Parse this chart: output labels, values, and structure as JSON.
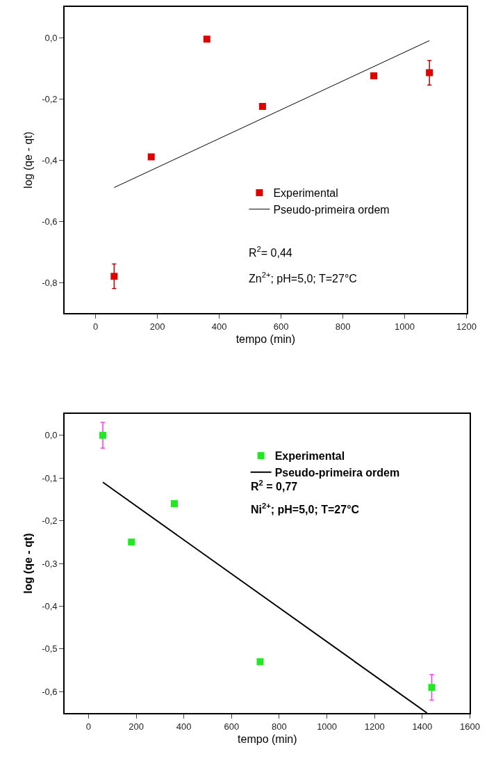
{
  "chart_data": [
    {
      "type": "scatter",
      "xlabel": "tempo (min)",
      "ylabel": "log (qe - qt)",
      "xlim": [
        -100,
        1200
      ],
      "ylim": [
        -0.9,
        0.1
      ],
      "xticks": [
        0,
        200,
        400,
        600,
        800,
        1000,
        1200
      ],
      "yticks": [
        {
          "value": 0,
          "label": "0,0"
        },
        {
          "value": -0.2,
          "label": "-0,2"
        },
        {
          "value": -0.4,
          "label": "-0,4"
        },
        {
          "value": -0.6,
          "label": "-0,6"
        },
        {
          "value": -0.8,
          "label": "-0,8"
        }
      ],
      "grid": false,
      "legend": "bottom right",
      "line_style": "solid",
      "series": [
        {
          "name": "Experimental",
          "marker": "square",
          "color": "#e00000",
          "x": [
            60,
            180,
            360,
            540,
            900,
            1080
          ],
          "values": [
            -0.78,
            -0.39,
            -0.005,
            -0.225,
            -0.125,
            -0.115
          ],
          "errors": [
            0.04,
            null,
            null,
            null,
            null,
            0.04
          ]
        },
        {
          "name": "Pseudo-primeira ordem",
          "type": "line",
          "color": "#000000",
          "x": [
            60,
            1080
          ],
          "values": [
            -0.49,
            -0.01
          ]
        }
      ],
      "annotations": [
        "R$^{2}$= 0,44",
        "Zn$^{2+}$; pH=5,0; T=27°C"
      ]
    },
    {
      "type": "scatter",
      "xlabel": "tempo (min)",
      "ylabel": "log (qe - qt)",
      "xlim": [
        -100,
        1600
      ],
      "ylim": [
        -0.65,
        0.05
      ],
      "xticks": [
        0,
        200,
        400,
        600,
        800,
        1000,
        1200,
        1400,
        1600
      ],
      "yticks": [
        {
          "value": 0,
          "label": "0,0"
        },
        {
          "value": -0.1,
          "label": "-0,1"
        },
        {
          "value": -0.2,
          "label": "-0,2"
        },
        {
          "value": -0.3,
          "label": "-0,3"
        },
        {
          "value": -0.4,
          "label": "-0,4"
        },
        {
          "value": -0.5,
          "label": "-0,5"
        },
        {
          "value": -0.6,
          "label": "-0,6"
        }
      ],
      "grid": false,
      "legend": "top right",
      "line_style": "solid",
      "series": [
        {
          "name": "Experimental",
          "marker": "square",
          "color": "#22e822",
          "x": [
            60,
            180,
            360,
            720,
            1440
          ],
          "values": [
            0.0,
            -0.25,
            -0.16,
            -0.53,
            -0.59
          ],
          "errors": [
            0.03,
            null,
            null,
            null,
            0.03
          ]
        },
        {
          "name": "Pseudo-primeira ordem",
          "type": "line",
          "color": "#000000",
          "x": [
            60,
            1420
          ],
          "values": [
            -0.11,
            -0.65
          ]
        }
      ],
      "annotations": [
        "R$^{2}$ = 0,77",
        "Ni$^{2+}$; pH=5,0; T=27°C"
      ]
    }
  ]
}
